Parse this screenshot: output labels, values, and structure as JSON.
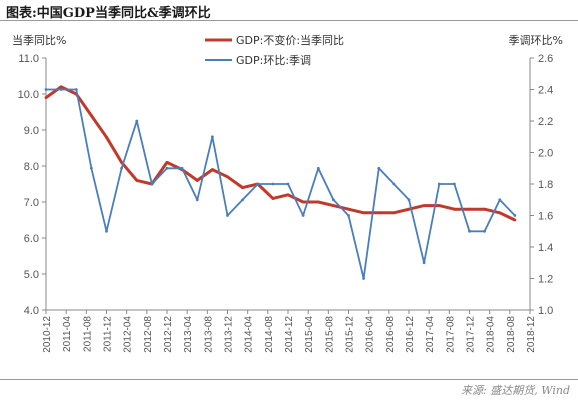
{
  "header": {
    "title": "图表:中国GDP当季同比&季调环比"
  },
  "footer": {
    "source": "来源: 盛达期货, Wind"
  },
  "colors": {
    "yoy": "#c0392b",
    "qoq": "#4a7ebb",
    "axis": "#8a8a8a"
  },
  "chart_data": {
    "type": "line",
    "title": "",
    "y_left_label": "当季同比%",
    "y_right_label": "季调环比%",
    "y_left_range": [
      4.0,
      11.0
    ],
    "y_right_range": [
      1.0,
      2.6
    ],
    "y_left_ticks": [
      "4.0",
      "5.0",
      "6.0",
      "7.0",
      "8.0",
      "9.0",
      "10.0",
      "11.0"
    ],
    "y_right_ticks": [
      "1.0",
      "1.2",
      "1.4",
      "1.6",
      "1.8",
      "2.0",
      "2.2",
      "2.4",
      "2.6"
    ],
    "grid": false,
    "legend_position": "top-center",
    "categories": [
      "2010-12",
      "2011-03",
      "2011-06",
      "2011-09",
      "2011-12",
      "2012-03",
      "2012-06",
      "2012-09",
      "2012-12",
      "2013-03",
      "2013-06",
      "2013-09",
      "2013-12",
      "2014-03",
      "2014-06",
      "2014-09",
      "2014-12",
      "2015-03",
      "2015-06",
      "2015-09",
      "2015-12",
      "2016-03",
      "2016-06",
      "2016-09",
      "2016-12",
      "2017-03",
      "2017-06",
      "2017-09",
      "2017-12",
      "2018-03",
      "2018-06",
      "2018-09"
    ],
    "x_tick_labels": [
      "2010-12",
      "2011-04",
      "2011-08",
      "2011-12",
      "2012-04",
      "2012-08",
      "2012-12",
      "2013-04",
      "2013-08",
      "2013-12",
      "2014-04",
      "2014-08",
      "2014-12",
      "2015-04",
      "2015-08",
      "2015-12",
      "2016-04",
      "2016-08",
      "2016-12",
      "2017-04",
      "2017-08",
      "2017-12",
      "2018-04",
      "2018-08",
      "2018-12"
    ],
    "series": [
      {
        "name": "GDP:不变价:当季同比",
        "axis": "left",
        "values": [
          9.9,
          10.2,
          10.0,
          9.4,
          8.8,
          8.1,
          7.6,
          7.5,
          8.1,
          7.9,
          7.6,
          7.9,
          7.7,
          7.4,
          7.5,
          7.1,
          7.2,
          7.0,
          7.0,
          6.9,
          6.8,
          6.7,
          6.7,
          6.7,
          6.8,
          6.9,
          6.9,
          6.8,
          6.8,
          6.8,
          6.7,
          6.5
        ]
      },
      {
        "name": "GDP:环比:季调",
        "axis": "right",
        "values": [
          2.4,
          2.4,
          2.4,
          1.9,
          1.5,
          1.9,
          2.2,
          1.8,
          1.9,
          1.9,
          1.7,
          2.1,
          1.6,
          1.7,
          1.8,
          1.8,
          1.8,
          1.6,
          1.9,
          1.7,
          1.6,
          1.2,
          1.9,
          1.8,
          1.7,
          1.3,
          1.8,
          1.8,
          1.5,
          1.5,
          1.7,
          1.6
        ]
      }
    ]
  }
}
